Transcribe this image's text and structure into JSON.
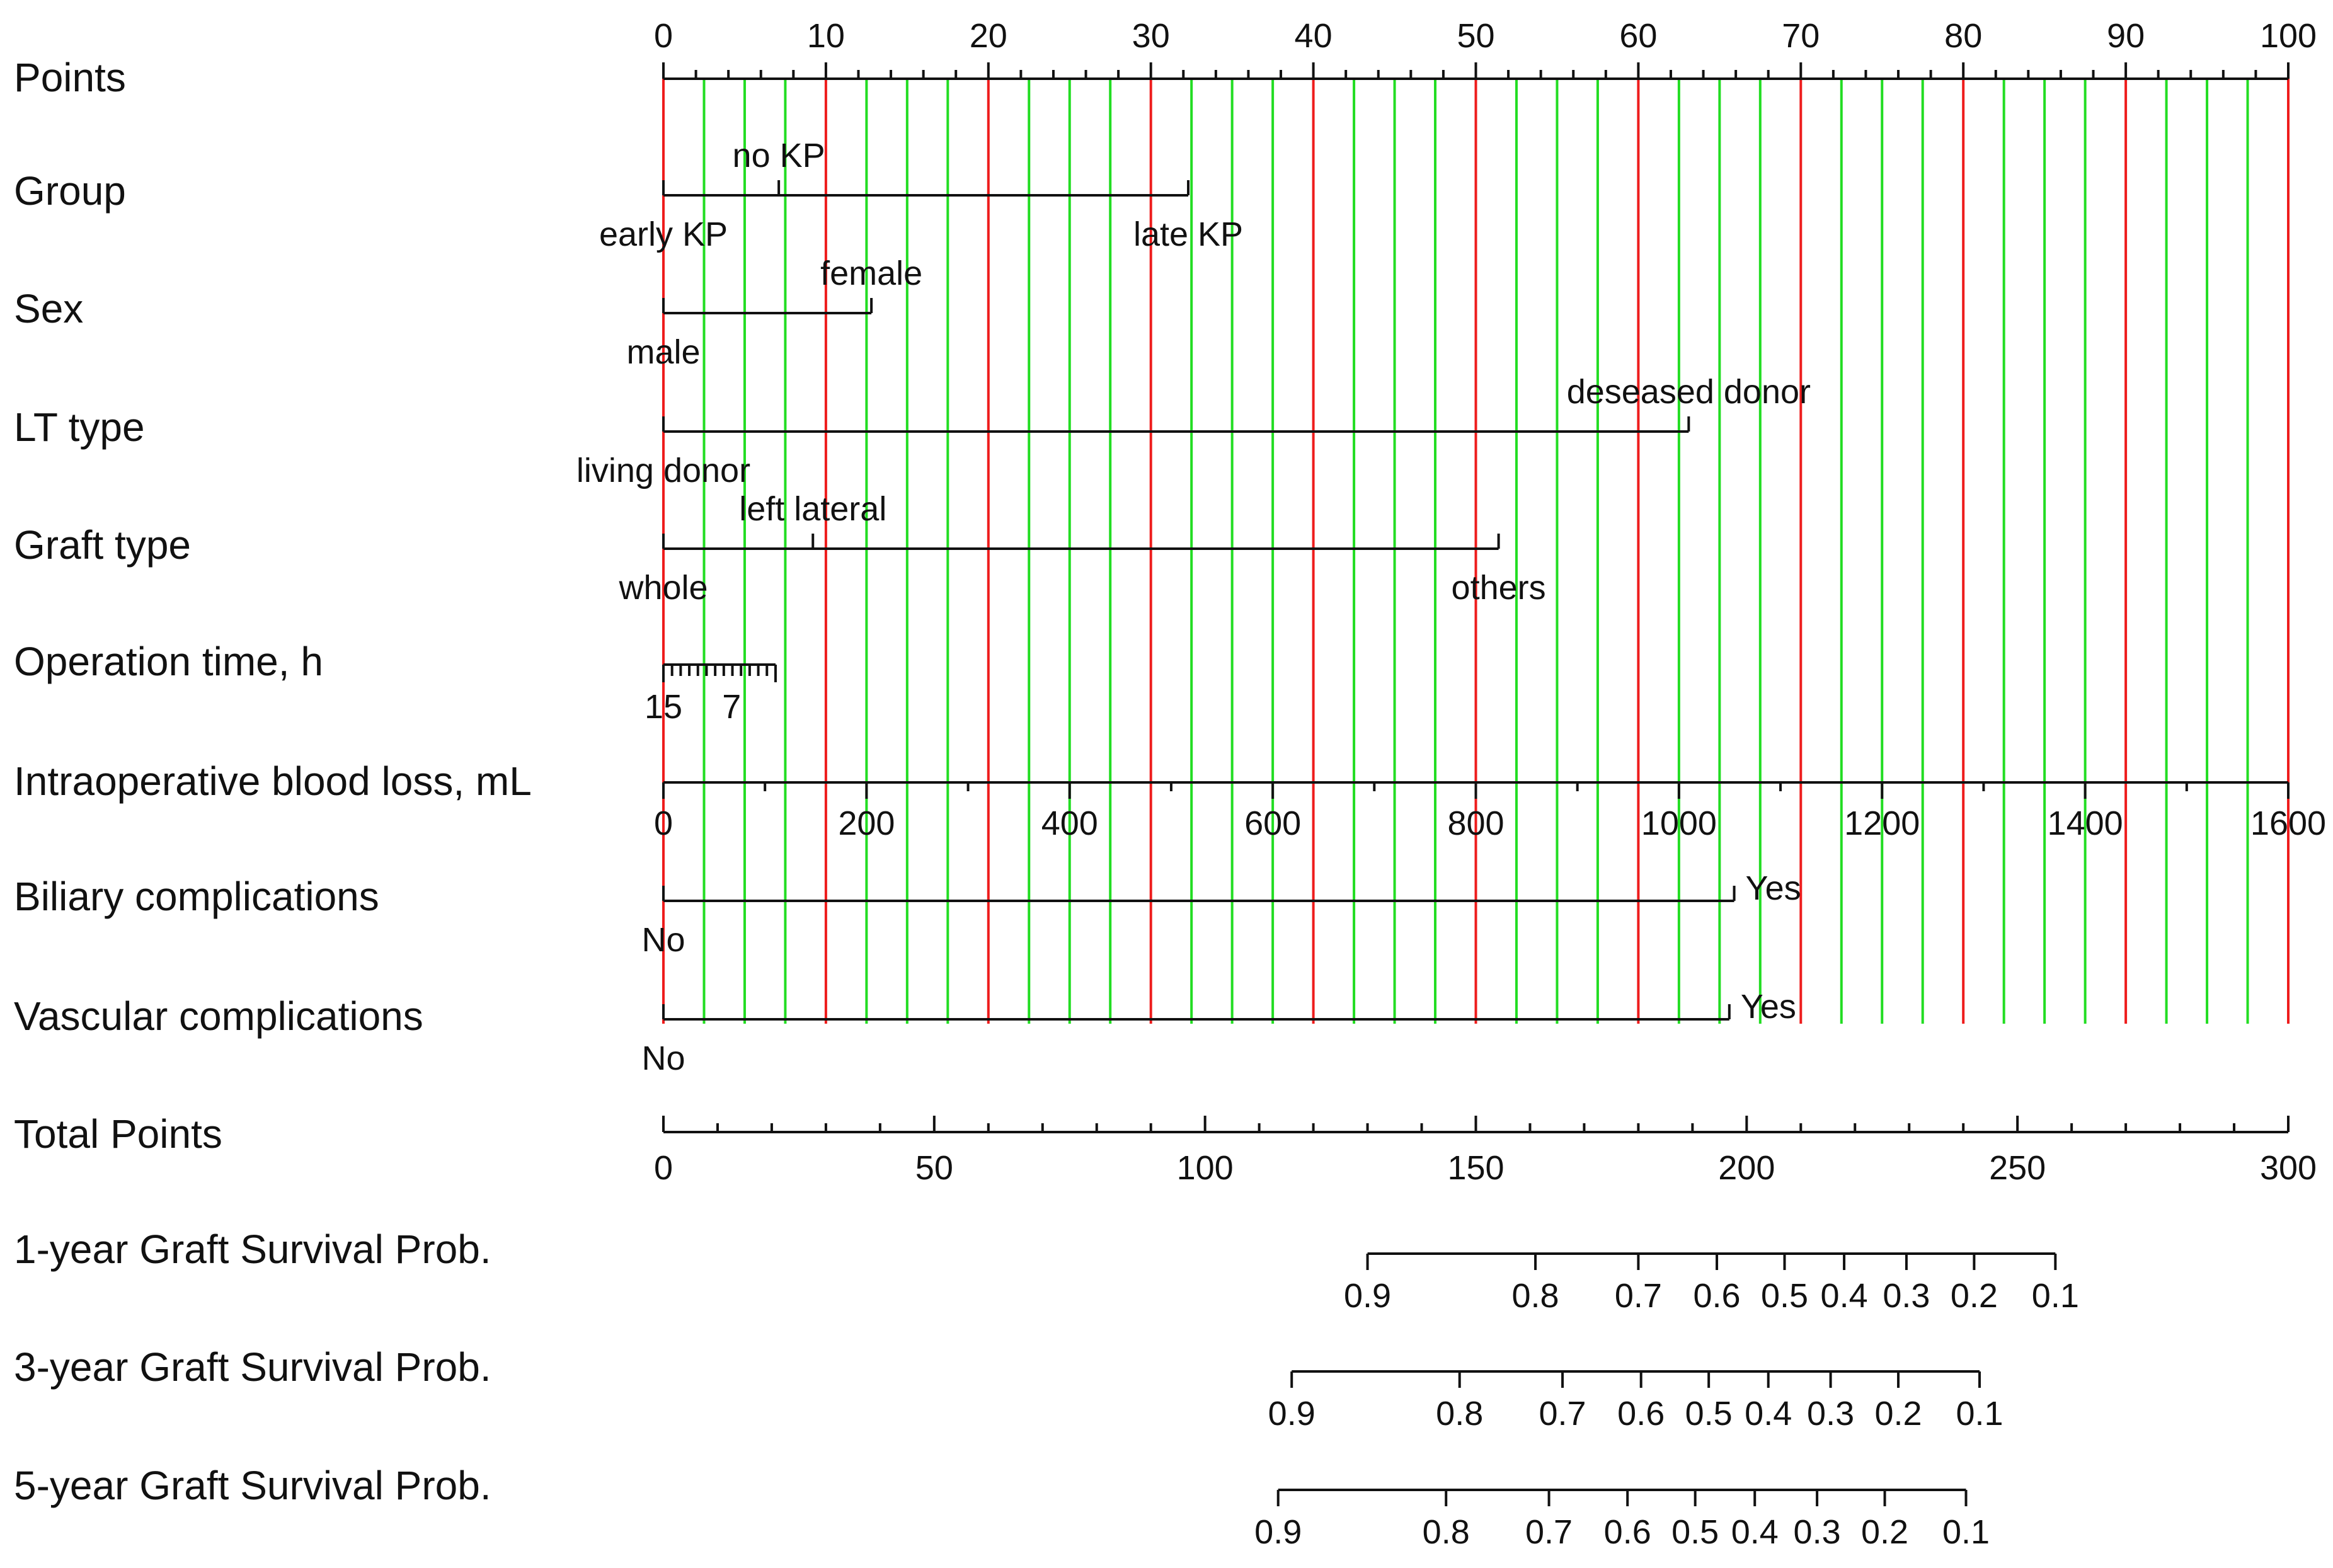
{
  "chart_data": {
    "type": "nomogram",
    "points_axis": {
      "label": "Points",
      "range": [
        0,
        100
      ],
      "tick_labels": [
        "0",
        "10",
        "20",
        "30",
        "40",
        "50",
        "60",
        "70",
        "80",
        "90",
        "100"
      ]
    },
    "grid": {
      "major_color": "#ee1c1c",
      "minor_color": "#22dd22",
      "major_step": 10,
      "minor_step": 2.5
    },
    "variables": [
      {
        "label": "Group",
        "line": [
          0,
          32.3
        ],
        "levels": [
          {
            "name": "early KP",
            "points": 0,
            "side": "below"
          },
          {
            "name": "no KP",
            "points": 7.1,
            "side": "above"
          },
          {
            "name": "late KP",
            "points": 32.3,
            "side": "below"
          }
        ]
      },
      {
        "label": "Sex",
        "line": [
          0,
          12.8
        ],
        "levels": [
          {
            "name": "male",
            "points": 0,
            "side": "below"
          },
          {
            "name": "female",
            "points": 12.8,
            "side": "above"
          }
        ]
      },
      {
        "label": "LT type",
        "line": [
          0,
          63.1
        ],
        "levels": [
          {
            "name": "living donor",
            "points": 0,
            "side": "below"
          },
          {
            "name": "deseased donor",
            "points": 63.1,
            "side": "above"
          }
        ]
      },
      {
        "label": "Graft type",
        "line": [
          0,
          51.4
        ],
        "levels": [
          {
            "name": "whole",
            "points": 0,
            "side": "below"
          },
          {
            "name": "left lateral",
            "points": 9.2,
            "side": "above"
          },
          {
            "name": "others",
            "points": 51.4,
            "side": "below"
          }
        ]
      },
      {
        "label": "Operation time, h",
        "line": [
          0,
          6.9
        ],
        "minor_ticks": 13,
        "tick_labels": [
          {
            "text": "15",
            "points": 0
          },
          {
            "text": "7",
            "points": 4.2
          }
        ]
      },
      {
        "label": "Intraoperative blood loss, mL",
        "scale": {
          "min": 0,
          "max": 1600,
          "points_min": 0,
          "points_max": 100,
          "major_step": 200,
          "minor_step": 100
        },
        "tick_labels": [
          "0",
          "200",
          "400",
          "600",
          "800",
          "1000",
          "1200",
          "1400",
          "1600"
        ]
      },
      {
        "label": "Biliary complications",
        "line": [
          0,
          65.9
        ],
        "levels": [
          {
            "name": "No",
            "points": 0,
            "side": "below"
          },
          {
            "name": "Yes",
            "points": 65.9,
            "side": "right"
          }
        ]
      },
      {
        "label": "Vascular complications",
        "line": [
          0,
          65.6
        ],
        "levels": [
          {
            "name": "No",
            "points": 0,
            "side": "below"
          },
          {
            "name": "Yes",
            "points": 65.6,
            "side": "right"
          }
        ]
      }
    ],
    "total_points_axis": {
      "label": "Total Points",
      "range": [
        0,
        300
      ],
      "tick_labels": [
        "0",
        "50",
        "100",
        "150",
        "200",
        "250",
        "300"
      ],
      "major_step": 50,
      "minor_step": 10
    },
    "probability_axes": [
      {
        "label": "1-year Graft Survival Prob.",
        "ticks": [
          {
            "label": "0.9",
            "total_points": 130
          },
          {
            "label": "0.8",
            "total_points": 161
          },
          {
            "label": "0.7",
            "total_points": 180
          },
          {
            "label": "0.6",
            "total_points": 194.5
          },
          {
            "label": "0.5",
            "total_points": 207
          },
          {
            "label": "0.4",
            "total_points": 218
          },
          {
            "label": "0.3",
            "total_points": 229.5
          },
          {
            "label": "0.2",
            "total_points": 242
          },
          {
            "label": "0.1",
            "total_points": 257
          }
        ]
      },
      {
        "label": "3-year Graft Survival Prob.",
        "ticks": [
          {
            "label": "0.9",
            "total_points": 116
          },
          {
            "label": "0.8",
            "total_points": 147
          },
          {
            "label": "0.7",
            "total_points": 166
          },
          {
            "label": "0.6",
            "total_points": 180.5
          },
          {
            "label": "0.5",
            "total_points": 193
          },
          {
            "label": "0.4",
            "total_points": 204
          },
          {
            "label": "0.3",
            "total_points": 215.5
          },
          {
            "label": "0.2",
            "total_points": 228
          },
          {
            "label": "0.1",
            "total_points": 243
          }
        ]
      },
      {
        "label": "5-year Graft Survival Prob.",
        "ticks": [
          {
            "label": "0.9",
            "total_points": 113.5
          },
          {
            "label": "0.8",
            "total_points": 144.5
          },
          {
            "label": "0.7",
            "total_points": 163.5
          },
          {
            "label": "0.6",
            "total_points": 178
          },
          {
            "label": "0.5",
            "total_points": 190.5
          },
          {
            "label": "0.4",
            "total_points": 201.5
          },
          {
            "label": "0.3",
            "total_points": 213
          },
          {
            "label": "0.2",
            "total_points": 225.5
          },
          {
            "label": "0.1",
            "total_points": 240.5
          }
        ]
      }
    ]
  }
}
